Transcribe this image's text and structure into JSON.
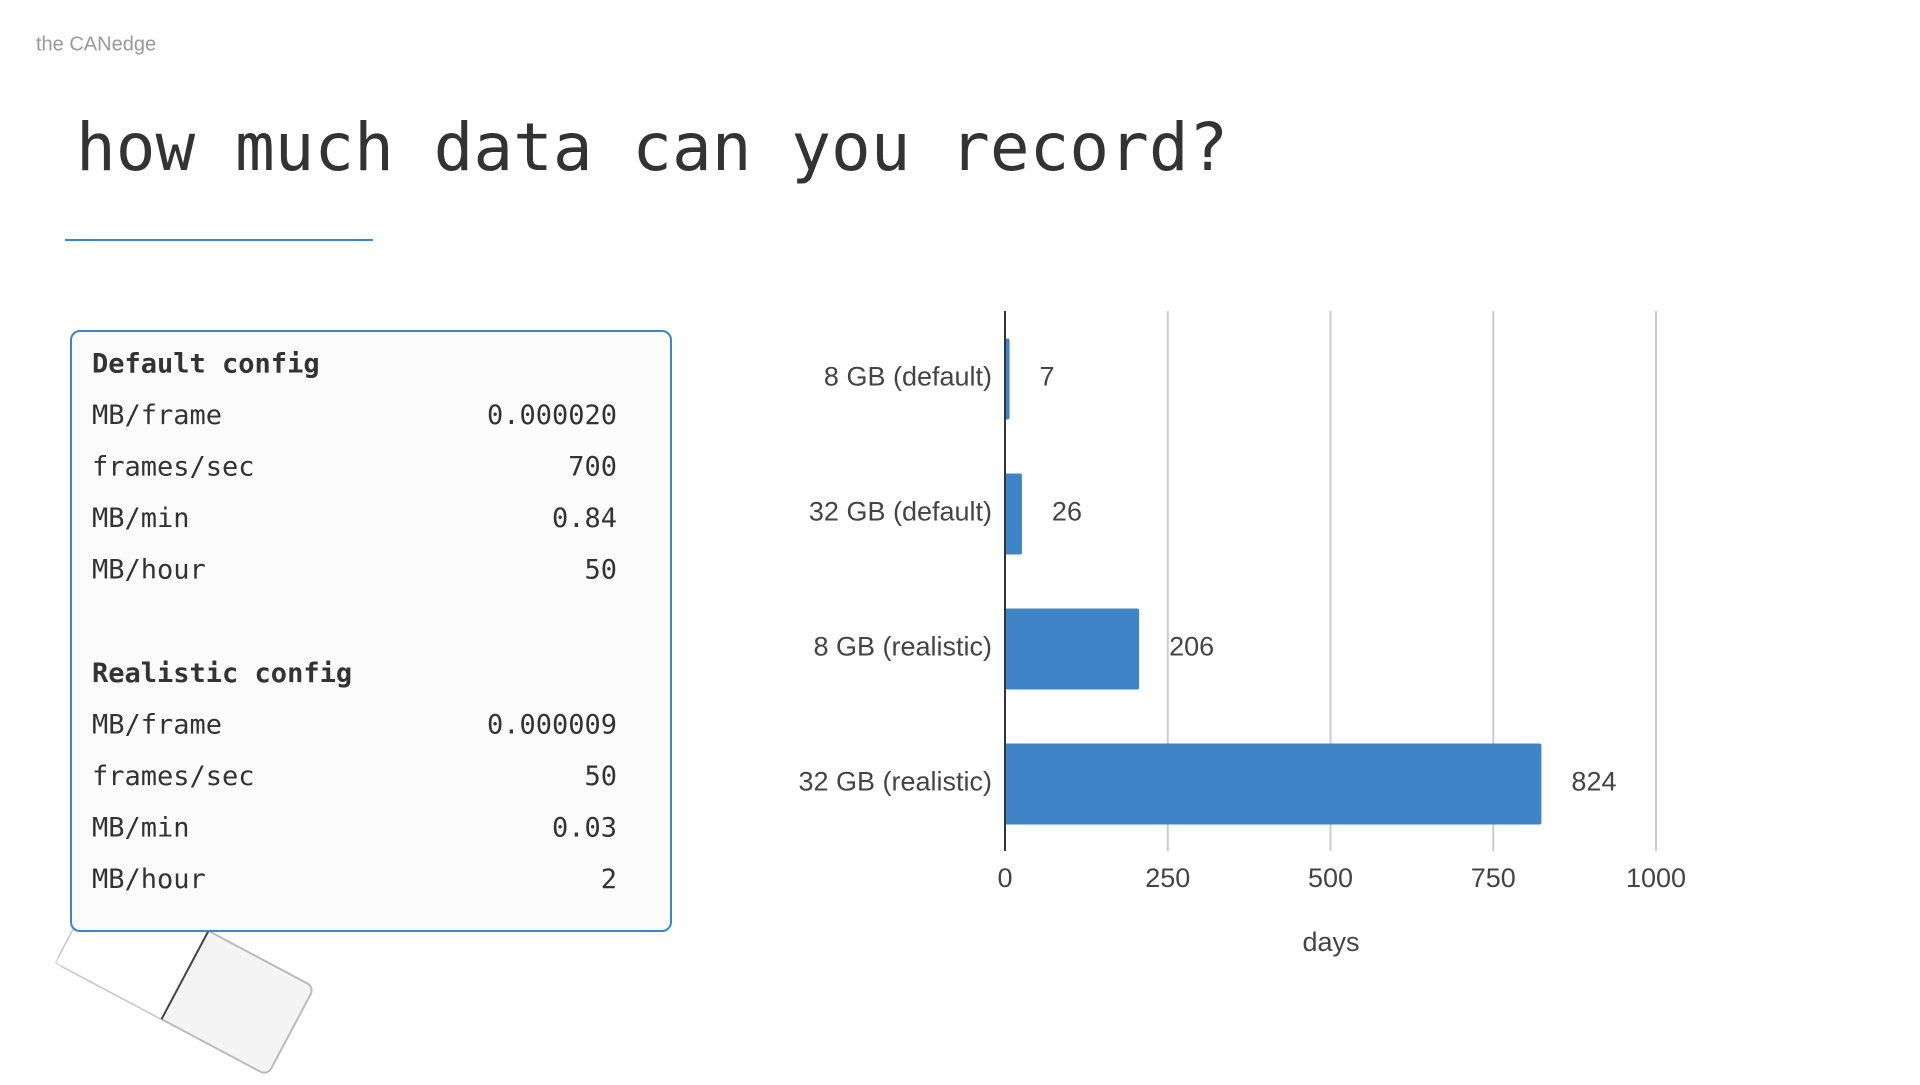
{
  "header": {
    "brand": "the CANedge",
    "title": "how much data can you record?"
  },
  "config": {
    "sections": [
      {
        "title": "Default config",
        "rows": [
          [
            "MB/frame",
            "0.000020"
          ],
          [
            "frames/sec",
            "700"
          ],
          [
            "MB/min",
            "0.84"
          ],
          [
            "MB/hour",
            "50"
          ]
        ]
      },
      {
        "title": "Realistic config",
        "rows": [
          [
            "MB/frame",
            "0.000009"
          ],
          [
            "frames/sec",
            "50"
          ],
          [
            "MB/min",
            "0.03"
          ],
          [
            "MB/hour",
            "2"
          ]
        ]
      }
    ]
  },
  "chart_data": {
    "type": "hbar",
    "x_label": "days",
    "categories": [
      "8 GB (default)",
      "32 GB (default)",
      "8 GB (realistic)",
      "32 GB (realistic)"
    ],
    "values": [
      7,
      26,
      206,
      824
    ],
    "color": "#3d85c6",
    "xlim": [
      0,
      1000
    ],
    "xticks": [
      0,
      250,
      500,
      750,
      1000
    ],
    "grid": true
  }
}
